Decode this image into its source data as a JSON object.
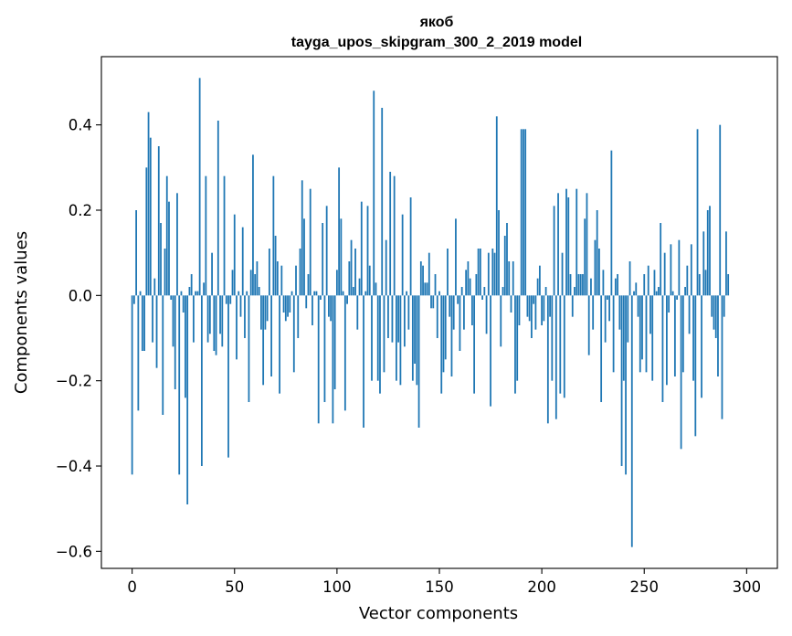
{
  "chart_data": {
    "type": "bar",
    "title_line1": "якоб",
    "title_line2": "tayga_upos_skipgram_300_2_2019 model",
    "xlabel": "Vector components",
    "ylabel": "Components values",
    "xlim": [
      -15,
      315
    ],
    "ylim": [
      -0.64,
      0.56
    ],
    "xticks": [
      0,
      50,
      100,
      150,
      200,
      250,
      300
    ],
    "xtick_labels": [
      "0",
      "50",
      "100",
      "150",
      "200",
      "250",
      "300"
    ],
    "yticks": [
      -0.6,
      -0.4,
      -0.2,
      0.0,
      0.2,
      0.4
    ],
    "ytick_labels": [
      "−0.6",
      "−0.4",
      "−0.2",
      "0.0",
      "0.2",
      "0.4"
    ],
    "bar_color": "#1f77b4",
    "values": [
      -0.42,
      -0.02,
      0.2,
      -0.27,
      0.01,
      -0.13,
      -0.13,
      0.3,
      0.43,
      0.37,
      -0.11,
      0.04,
      -0.17,
      0.35,
      0.17,
      -0.28,
      0.11,
      0.28,
      0.22,
      -0.01,
      -0.12,
      -0.22,
      0.24,
      -0.42,
      0.01,
      -0.04,
      -0.24,
      -0.49,
      0.02,
      0.05,
      -0.11,
      0.01,
      0.01,
      0.51,
      -0.4,
      0.03,
      0.28,
      -0.11,
      -0.09,
      0.1,
      -0.13,
      -0.14,
      0.41,
      -0.09,
      -0.12,
      0.28,
      -0.02,
      -0.38,
      -0.02,
      0.06,
      0.19,
      -0.15,
      0.01,
      -0.05,
      0.16,
      -0.1,
      0.01,
      -0.25,
      0.06,
      0.33,
      0.05,
      0.08,
      0.02,
      -0.08,
      -0.21,
      -0.08,
      -0.06,
      0.11,
      -0.19,
      0.28,
      0.14,
      0.08,
      -0.23,
      0.07,
      -0.04,
      -0.06,
      -0.05,
      -0.04,
      0.01,
      -0.18,
      0.07,
      -0.1,
      0.11,
      0.27,
      0.18,
      -0.03,
      0.05,
      0.25,
      -0.07,
      0.01,
      0.01,
      -0.3,
      -0.01,
      0.17,
      -0.25,
      0.21,
      -0.05,
      -0.06,
      -0.3,
      -0.22,
      0.06,
      0.3,
      0.18,
      0.01,
      -0.27,
      -0.02,
      0.08,
      0.13,
      0.02,
      0.11,
      -0.08,
      0.04,
      0.22,
      -0.31,
      0.01,
      0.21,
      0.07,
      -0.2,
      0.48,
      0.03,
      -0.2,
      -0.23,
      0.44,
      -0.18,
      0.13,
      -0.1,
      0.29,
      -0.11,
      0.28,
      -0.2,
      -0.11,
      -0.21,
      0.19,
      -0.12,
      0.01,
      -0.08,
      0.23,
      -0.2,
      -0.16,
      -0.21,
      -0.31,
      0.08,
      0.07,
      0.03,
      0.03,
      0.1,
      -0.03,
      -0.03,
      0.05,
      -0.1,
      0.01,
      -0.23,
      -0.18,
      -0.15,
      0.11,
      -0.05,
      -0.19,
      -0.08,
      0.18,
      -0.02,
      -0.13,
      0.02,
      -0.08,
      0.06,
      0.08,
      0.04,
      -0.07,
      -0.23,
      0.05,
      0.11,
      0.11,
      -0.01,
      0.02,
      -0.09,
      0.1,
      -0.26,
      0.11,
      0.1,
      0.42,
      0.2,
      -0.12,
      0.02,
      0.14,
      0.17,
      0.08,
      -0.04,
      0.08,
      -0.23,
      -0.2,
      -0.07,
      0.39,
      0.39,
      0.39,
      -0.05,
      -0.06,
      -0.1,
      -0.02,
      -0.08,
      0.04,
      0.07,
      -0.07,
      -0.06,
      0.02,
      -0.3,
      -0.05,
      -0.2,
      0.21,
      -0.29,
      0.24,
      -0.23,
      0.1,
      -0.24,
      0.25,
      0.23,
      0.05,
      -0.05,
      0.02,
      0.25,
      0.05,
      0.05,
      0.05,
      0.18,
      0.24,
      -0.14,
      0.04,
      -0.08,
      0.13,
      0.2,
      0.11,
      -0.25,
      0.06,
      -0.11,
      -0.01,
      -0.06,
      0.34,
      -0.18,
      0.04,
      0.05,
      -0.08,
      -0.4,
      -0.2,
      -0.42,
      -0.11,
      0.08,
      -0.59,
      0.01,
      0.03,
      -0.05,
      -0.18,
      -0.15,
      0.05,
      -0.18,
      0.07,
      -0.09,
      -0.2,
      0.06,
      0.01,
      0.02,
      0.17,
      -0.25,
      0.1,
      -0.21,
      -0.04,
      0.12,
      0.01,
      -0.19,
      -0.01,
      0.13,
      -0.36,
      -0.18,
      0.02,
      0.07,
      -0.09,
      0.12,
      -0.2,
      -0.33,
      0.39,
      0.05,
      -0.24,
      0.15,
      0.06,
      0.2,
      0.21,
      -0.05,
      -0.08,
      -0.1,
      -0.19,
      0.4,
      -0.29,
      -0.05,
      0.15,
      0.05
    ]
  }
}
